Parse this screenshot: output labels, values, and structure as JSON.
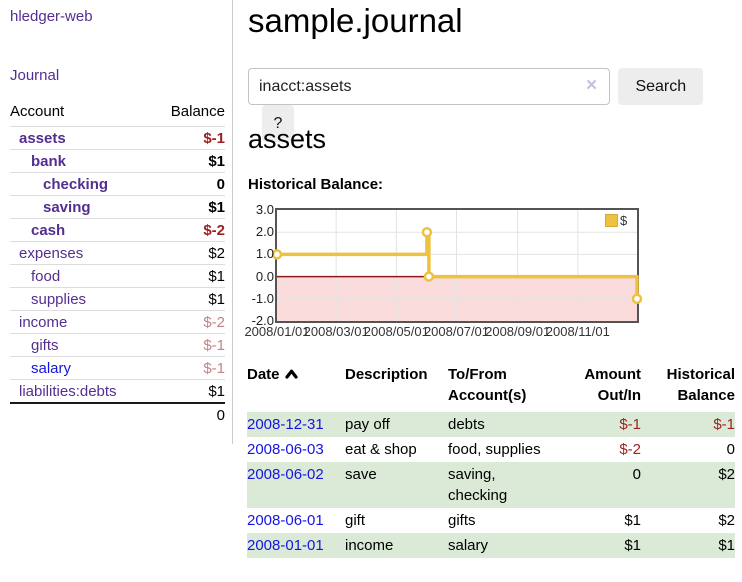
{
  "sidebar": {
    "app_title": "hledger-web",
    "journal_link": "Journal",
    "accounts_table": {
      "account_header": "Account",
      "balance_header": "Balance",
      "rows": [
        {
          "name": "assets",
          "balance": "$-1",
          "indent": 1,
          "match": true,
          "neg": true
        },
        {
          "name": "bank",
          "balance": "$1",
          "indent": 2,
          "match": true,
          "neg": false
        },
        {
          "name": "checking",
          "balance": "0",
          "indent": 3,
          "match": true,
          "neg": false
        },
        {
          "name": "saving",
          "balance": "$1",
          "indent": 3,
          "match": true,
          "neg": false
        },
        {
          "name": "cash",
          "balance": "$-2",
          "indent": 2,
          "match": true,
          "neg": true
        },
        {
          "name": "expenses",
          "balance": "$2",
          "indent": 1,
          "match": false,
          "neg": false
        },
        {
          "name": "food",
          "balance": "$1",
          "indent": 2,
          "match": false,
          "neg": false
        },
        {
          "name": "supplies",
          "balance": "$1",
          "indent": 2,
          "match": false,
          "neg": false
        },
        {
          "name": "income",
          "balance": "$-2",
          "indent": 1,
          "match": false,
          "neg": true
        },
        {
          "name": "gifts",
          "balance": "$-1",
          "indent": 2,
          "match": false,
          "neg": true
        },
        {
          "name": "salary",
          "balance": "$-1",
          "indent": 2,
          "match": false,
          "neg": true,
          "link_blue": true
        },
        {
          "name": "liabilities:debts",
          "balance": "$1",
          "indent": 1,
          "match": false,
          "neg": false
        }
      ],
      "total": "0"
    }
  },
  "header": {
    "title": "sample.journal"
  },
  "search": {
    "value": "inacct:assets",
    "clear_icon": "×",
    "button_label": "Search",
    "help_label": "?"
  },
  "account_page": {
    "heading": "assets",
    "chart_label": "Historical Balance:"
  },
  "chart_data": {
    "type": "line",
    "title": "Historical Balance",
    "step": true,
    "x_range": [
      "2008-01-01",
      "2008-12-31"
    ],
    "ylim": [
      -2,
      3
    ],
    "series": [
      {
        "name": "$",
        "color": "#edc240",
        "points": [
          [
            "2008-01-01",
            1
          ],
          [
            "2008-06-01",
            2
          ],
          [
            "2008-06-03",
            0
          ],
          [
            "2008-12-31",
            -1
          ]
        ]
      }
    ],
    "x_ticks": [
      {
        "date": "2008-01-01",
        "label": "2008/01/01"
      },
      {
        "date": "2008-03-01",
        "label": "2008/03/01"
      },
      {
        "date": "2008-05-01",
        "label": "2008/05/01"
      },
      {
        "date": "2008-07-01",
        "label": "2008/07/01"
      },
      {
        "date": "2008-09-01",
        "label": "2008/09/01"
      },
      {
        "date": "2008-11-01",
        "label": "2008/11/01"
      }
    ],
    "y_ticks": [
      {
        "v": 3,
        "label": "3.0"
      },
      {
        "v": 2,
        "label": "2.0"
      },
      {
        "v": 1,
        "label": "1.0"
      },
      {
        "v": 0,
        "label": "0.0"
      },
      {
        "v": -1,
        "label": "-1.0"
      },
      {
        "v": -2,
        "label": "-2.0"
      }
    ],
    "legend": {
      "label": "$",
      "position": "top-right"
    },
    "grid": true,
    "negative_region_color": "#fbdcdc",
    "zero_line_color": "#8b1a1a",
    "grid_color": "#e3e3e3",
    "border_color": "#545454"
  },
  "register_table": {
    "headers": {
      "date": "Date",
      "sort_icon": "chevron-up",
      "description": "Description",
      "accounts": "To/From Account(s)",
      "amount": "Amount Out/In",
      "balance": "Historical Balance"
    },
    "rows": [
      {
        "date": "2008-12-31",
        "description": "pay off",
        "accounts": "debts",
        "amount": "$-1",
        "balance": "$-1",
        "amount_neg": true,
        "balance_neg": true
      },
      {
        "date": "2008-06-03",
        "description": "eat & shop",
        "accounts": "food, supplies",
        "amount": "$-2",
        "balance": "0",
        "amount_neg": true,
        "balance_neg": false
      },
      {
        "date": "2008-06-02",
        "description": "save",
        "accounts": "saving,\nchecking",
        "amount": "0",
        "balance": "$2",
        "amount_neg": false,
        "balance_neg": false
      },
      {
        "date": "2008-06-01",
        "description": "gift",
        "accounts": "gifts",
        "amount": "$1",
        "balance": "$2",
        "amount_neg": false,
        "balance_neg": false
      },
      {
        "date": "2008-01-01",
        "description": "income",
        "accounts": "salary",
        "amount": "$1",
        "balance": "$1",
        "amount_neg": false,
        "balance_neg": false
      }
    ]
  }
}
